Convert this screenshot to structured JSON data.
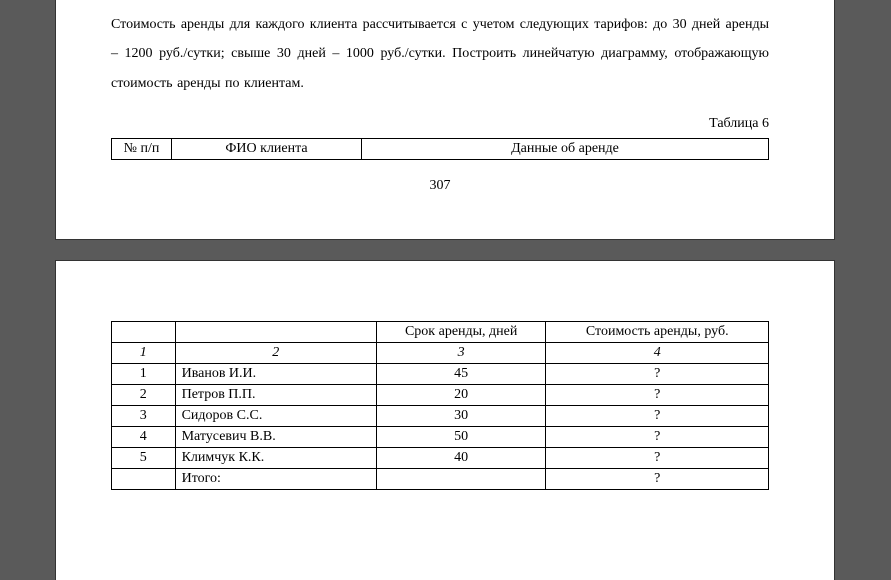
{
  "top": {
    "paragraph": "Стоимость аренды для каждого клиента рассчитывается с учетом следующих тарифов: до 30 дней аренды – 1200 руб./сутки; свыше 30 дней – 1000 руб./сутки. Построить линейчатую диаграмму, отображающую стоимость аренды по клиентам.",
    "table_label": "Таблица 6",
    "header": {
      "col1": "№ п/п",
      "col2": "ФИО клиента",
      "col3": "Данные об аренде"
    },
    "page_number": "307"
  },
  "bottom": {
    "subheader": {
      "col3": "Срок аренды, дней",
      "col4": "Стоимость аренды, руб."
    },
    "index_row": {
      "c1": "1",
      "c2": "2",
      "c3": "3",
      "c4": "4"
    },
    "rows": [
      {
        "n": "1",
        "fio": "Иванов И.И.",
        "days": "45",
        "cost": "?"
      },
      {
        "n": "2",
        "fio": "Петров П.П.",
        "days": "20",
        "cost": "?"
      },
      {
        "n": "3",
        "fio": "Сидоров С.С.",
        "days": "30",
        "cost": "?"
      },
      {
        "n": "4",
        "fio": "Матусевич В.В.",
        "days": "50",
        "cost": "?"
      },
      {
        "n": "5",
        "fio": "Климчук К.К.",
        "days": "40",
        "cost": "?"
      }
    ],
    "total": {
      "label": "Итого:",
      "value": "?"
    }
  }
}
